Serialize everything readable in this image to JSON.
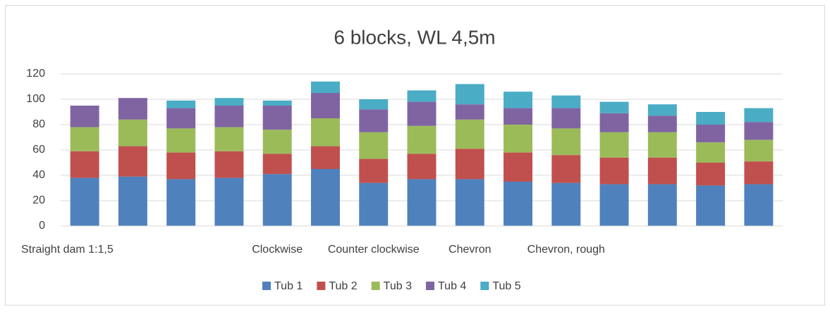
{
  "chart_data": {
    "type": "stacked_bar",
    "title": "6 blocks, WL 4,5m",
    "categories": [
      "Straight dam 1:1,5",
      null,
      null,
      null,
      "Clockwise",
      null,
      "Counter clockwise",
      null,
      "Chevron",
      null,
      "Chevron, rough",
      null,
      null,
      null,
      null
    ],
    "series": [
      {
        "name": "Tub 1",
        "color": "#4f81bd",
        "values": [
          38,
          39,
          37,
          38,
          41,
          45,
          34,
          37,
          37,
          35,
          34,
          33,
          33,
          32,
          33
        ]
      },
      {
        "name": "Tub 2",
        "color": "#c0504d",
        "values": [
          21,
          24,
          21,
          21,
          16,
          18,
          19,
          20,
          24,
          23,
          22,
          21,
          21,
          18,
          18
        ]
      },
      {
        "name": "Tub 3",
        "color": "#9bbb59",
        "values": [
          19,
          21,
          19,
          19,
          19,
          22,
          21,
          22,
          23,
          22,
          21,
          20,
          20,
          16,
          17
        ]
      },
      {
        "name": "Tub 4",
        "color": "#8064a2",
        "values": [
          17,
          17,
          16,
          17,
          19,
          20,
          18,
          19,
          12,
          13,
          16,
          15,
          13,
          14,
          14
        ]
      },
      {
        "name": "Tub 5",
        "color": "#4bacc6",
        "values": [
          0,
          0,
          6,
          6,
          4,
          9,
          8,
          9,
          16,
          13,
          10,
          9,
          9,
          10,
          11
        ]
      }
    ],
    "ylim": [
      0,
      120
    ],
    "yticks": [
      0,
      20,
      40,
      60,
      80,
      100,
      120
    ],
    "grid": true,
    "legend": "bottom"
  }
}
